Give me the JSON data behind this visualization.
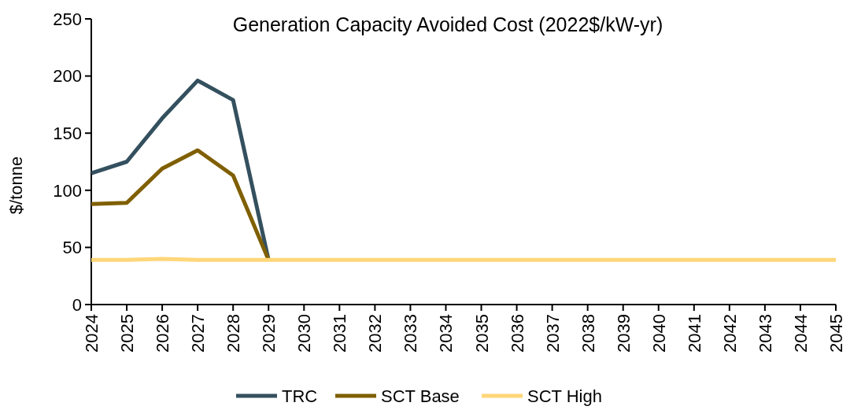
{
  "chart_data": {
    "type": "line",
    "title": "Generation Capacity Avoided Cost (2022$/kW-yr)",
    "ylabel": "$/tonne",
    "categories": [
      "2024",
      "2025",
      "2026",
      "2027",
      "2028",
      "2029",
      "2030",
      "2031",
      "2032",
      "2033",
      "2034",
      "2035",
      "2036",
      "2037",
      "2038",
      "2039",
      "2040",
      "2041",
      "2042",
      "2043",
      "2044",
      "2045"
    ],
    "series": [
      {
        "name": "TRC",
        "color": "#34505f",
        "values": [
          115,
          125,
          163,
          196,
          179,
          39,
          null,
          null,
          null,
          null,
          null,
          null,
          null,
          null,
          null,
          null,
          null,
          null,
          null,
          null,
          null,
          null
        ]
      },
      {
        "name": "SCT Base",
        "color": "#7f5f00",
        "values": [
          88,
          89,
          119,
          135,
          113,
          39,
          null,
          null,
          null,
          null,
          null,
          null,
          null,
          null,
          null,
          null,
          null,
          null,
          null,
          null,
          null,
          null
        ]
      },
      {
        "name": "SCT High",
        "color": "#ffd679",
        "values": [
          39,
          39,
          40,
          39,
          39,
          39,
          39,
          39,
          39,
          39,
          39,
          39,
          39,
          39,
          39,
          39,
          39,
          39,
          39,
          39,
          39,
          39
        ]
      }
    ],
    "ylim": [
      0,
      250
    ],
    "yticks": [
      0,
      50,
      100,
      150,
      200,
      250
    ],
    "grid": false,
    "legend": "bottom",
    "marker": "none",
    "line_style": "solid"
  }
}
